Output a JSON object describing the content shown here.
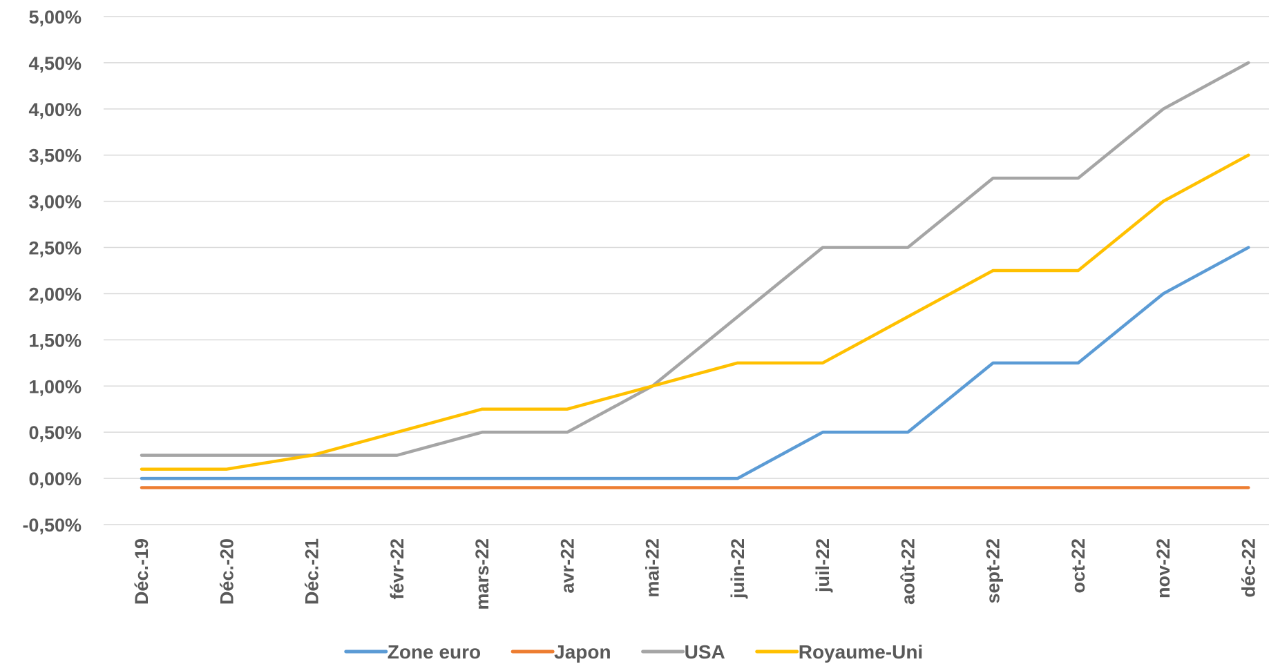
{
  "chart_data": {
    "type": "line",
    "title": "",
    "xlabel": "",
    "ylabel": "",
    "categories": [
      "Déc.-19",
      "Déc.-20",
      "Déc.-21",
      "févr-22",
      "mars-22",
      "avr-22",
      "mai-22",
      "juin-22",
      "juil-22",
      "août-22",
      "sept-22",
      "oct-22",
      "nov-22",
      "déc-22"
    ],
    "ylim": [
      -0.5,
      5.0
    ],
    "y_ticks": [
      5.0,
      4.5,
      4.0,
      3.5,
      3.0,
      2.5,
      2.0,
      1.5,
      1.0,
      0.5,
      0.0,
      -0.5
    ],
    "y_tick_labels": [
      "5,00%",
      "4,50%",
      "4,00%",
      "3,50%",
      "3,00%",
      "2,50%",
      "2,00%",
      "1,50%",
      "1,00%",
      "0,50%",
      "0,00%",
      "-0,50%"
    ],
    "grid": "horizontal",
    "legend_position": "bottom",
    "series": [
      {
        "name": "Zone euro",
        "color": "#5b9bd5",
        "values": [
          0,
          0,
          0,
          0,
          0,
          0,
          0,
          0,
          0.5,
          0.5,
          1.25,
          1.25,
          2.0,
          2.5
        ]
      },
      {
        "name": "Japon",
        "color": "#ed7d31",
        "values": [
          -0.1,
          -0.1,
          -0.1,
          -0.1,
          -0.1,
          -0.1,
          -0.1,
          -0.1,
          -0.1,
          -0.1,
          -0.1,
          -0.1,
          -0.1,
          -0.1
        ]
      },
      {
        "name": "USA",
        "color": "#a5a5a5",
        "values": [
          0.25,
          0.25,
          0.25,
          0.25,
          0.5,
          0.5,
          1.0,
          1.75,
          2.5,
          2.5,
          3.25,
          3.25,
          4.0,
          4.5
        ]
      },
      {
        "name": "Royaume-Uni",
        "color": "#ffc000",
        "values": [
          0.1,
          0.1,
          0.25,
          0.5,
          0.75,
          0.75,
          1.0,
          1.25,
          1.25,
          1.75,
          2.25,
          2.25,
          3.0,
          3.5
        ]
      }
    ]
  }
}
